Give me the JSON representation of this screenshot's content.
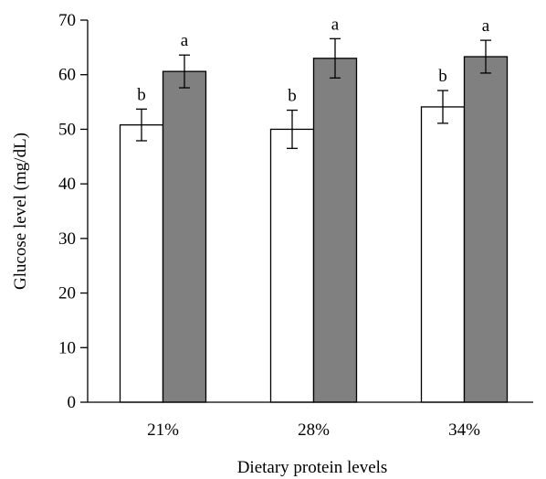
{
  "chart_data": {
    "type": "bar",
    "categories": [
      "21%",
      "28%",
      "34%"
    ],
    "series": [
      {
        "color": "#ffffff",
        "values": [
          50.8,
          50.0,
          54.1
        ],
        "errors": [
          2.9,
          3.5,
          3.0
        ],
        "labels": [
          "b",
          "b",
          "b"
        ]
      },
      {
        "color": "#808080",
        "values": [
          60.6,
          63.0,
          63.3
        ],
        "errors": [
          3.0,
          3.6,
          3.0
        ],
        "labels": [
          "a",
          "a",
          "a"
        ]
      }
    ],
    "xlabel": "Dietary protein levels",
    "ylabel": "Glucose level (mg/dL)",
    "ylim": [
      0,
      70
    ],
    "yticks": [
      0,
      10,
      20,
      30,
      40,
      50,
      60,
      70
    ],
    "grid": false,
    "legend": "none"
  }
}
